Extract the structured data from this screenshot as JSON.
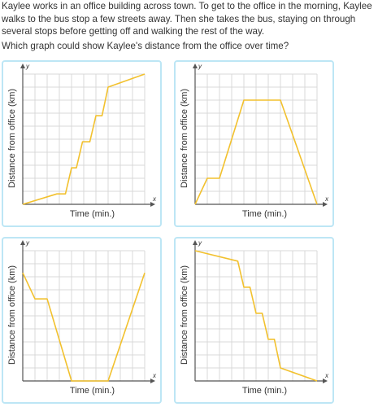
{
  "question": {
    "text": "Kaylee works in an office building across town. To get to the office in the morning, Kaylee walks to the bus stop a few streets away. Then she takes the bus, staying on through several stops before getting off and walking the rest of the way.",
    "prompt": "Which graph could show Kaylee's distance from the office over time?"
  },
  "colors": {
    "card_border": "#bde6f5",
    "grid": "#d9d9d9",
    "axis": "#555555",
    "line": "#f2c12e",
    "text": "#333333"
  },
  "choices": [
    {
      "id": "a",
      "y_label": "Distance from office (km)",
      "x_label": "Time (min.)",
      "x_axis": "x",
      "y_axis": "y",
      "chart_data": {
        "type": "line",
        "xlim": [
          0,
          10
        ],
        "ylim": [
          0,
          10
        ],
        "grid": true,
        "points": [
          [
            0,
            0
          ],
          [
            2.8,
            0.8
          ],
          [
            3.5,
            0.8
          ],
          [
            4.0,
            2.8
          ],
          [
            4.4,
            2.8
          ],
          [
            4.9,
            4.8
          ],
          [
            5.5,
            4.8
          ],
          [
            6.0,
            6.8
          ],
          [
            6.5,
            6.8
          ],
          [
            7.0,
            9.0
          ],
          [
            10,
            10
          ]
        ]
      }
    },
    {
      "id": "b",
      "y_label": "Distance from office (km)",
      "x_label": "Time (min.)",
      "x_axis": "x",
      "y_axis": "y",
      "chart_data": {
        "type": "line",
        "xlim": [
          0,
          10
        ],
        "ylim": [
          0,
          10
        ],
        "grid": true,
        "points": [
          [
            0,
            0
          ],
          [
            1.0,
            2.0
          ],
          [
            2.0,
            2.0
          ],
          [
            4.0,
            8.0
          ],
          [
            7.0,
            8.0
          ],
          [
            10,
            0
          ]
        ]
      }
    },
    {
      "id": "c",
      "y_label": "Distance from office (km)",
      "x_label": "Time (min.)",
      "x_axis": "x",
      "y_axis": "y",
      "chart_data": {
        "type": "line",
        "xlim": [
          0,
          10
        ],
        "ylim": [
          0,
          10
        ],
        "grid": true,
        "points": [
          [
            0,
            8.3
          ],
          [
            1.0,
            6.3
          ],
          [
            2.0,
            6.3
          ],
          [
            4.0,
            0
          ],
          [
            7.0,
            0
          ],
          [
            10,
            8.3
          ]
        ]
      }
    },
    {
      "id": "d",
      "y_label": "Distance from office (km)",
      "x_label": "Time (min.)",
      "x_axis": "x",
      "y_axis": "y",
      "chart_data": {
        "type": "line",
        "xlim": [
          0,
          10
        ],
        "ylim": [
          0,
          10
        ],
        "grid": true,
        "points": [
          [
            0,
            10
          ],
          [
            3.5,
            9.2
          ],
          [
            4.0,
            7.2
          ],
          [
            4.5,
            7.2
          ],
          [
            5.0,
            5.2
          ],
          [
            5.5,
            5.2
          ],
          [
            6.0,
            3.2
          ],
          [
            6.5,
            3.2
          ],
          [
            7.0,
            1.0
          ],
          [
            10,
            0
          ]
        ]
      }
    }
  ]
}
